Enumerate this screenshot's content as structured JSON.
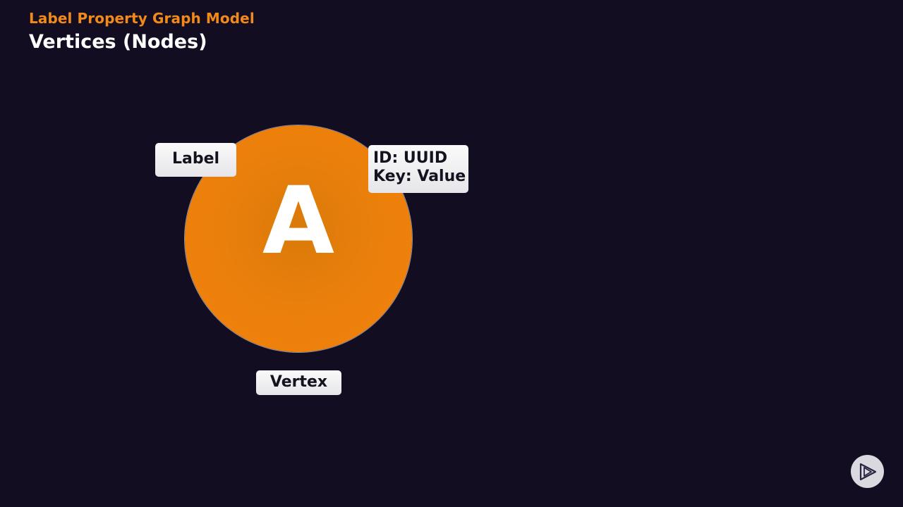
{
  "header": {
    "kicker": "Label Property Graph Model",
    "title": "Vertices (Nodes)"
  },
  "diagram": {
    "vertex_letter": "A",
    "label_tag": "Label",
    "properties": [
      "ID: UUID",
      "Key: Value"
    ],
    "caption": "Vertex",
    "colors": {
      "vertex_fill": "#f2830c",
      "accent": "#f28a1a",
      "background": "#130d22",
      "tag_bg": "#f2f2f4"
    }
  },
  "brand": {
    "icon": "play-logo-icon"
  }
}
